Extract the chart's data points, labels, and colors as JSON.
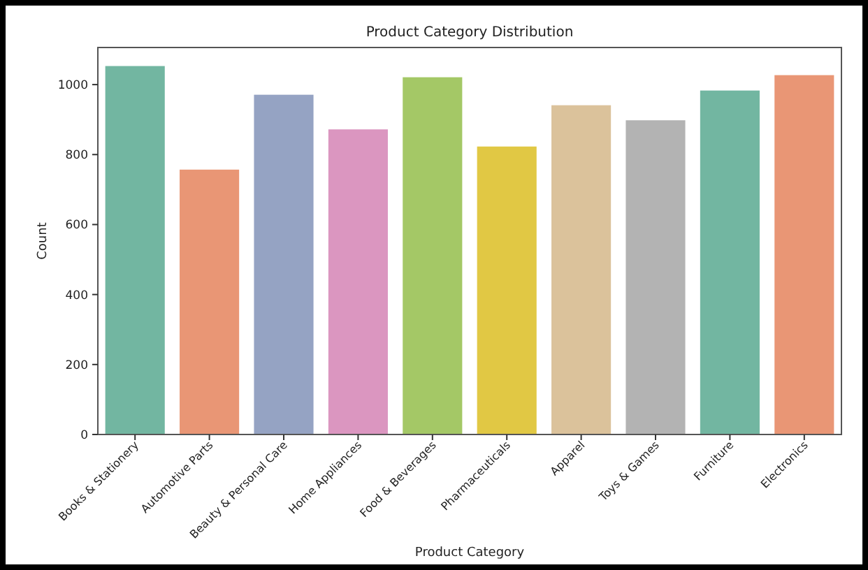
{
  "chart_data": {
    "type": "bar",
    "title": "Product Category Distribution",
    "xlabel": "Product Category",
    "ylabel": "Count",
    "categories": [
      "Books & Stationery",
      "Automotive Parts",
      "Beauty & Personal Care",
      "Home Appliances",
      "Food & Beverages",
      "Pharmaceuticals",
      "Apparel",
      "Toys & Games",
      "Furniture",
      "Electronics"
    ],
    "values": [
      1053,
      757,
      971,
      872,
      1021,
      823,
      941,
      898,
      983,
      1027
    ],
    "colors": [
      "#72b6a1",
      "#e99675",
      "#95a3c3",
      "#db96c0",
      "#a4c866",
      "#e1c844",
      "#dbc29b",
      "#b3b3b3",
      "#72b6a1",
      "#e99675"
    ],
    "ylim": [
      0,
      1106
    ],
    "yticks": [
      0,
      200,
      400,
      600,
      800,
      1000
    ],
    "grid": false
  }
}
